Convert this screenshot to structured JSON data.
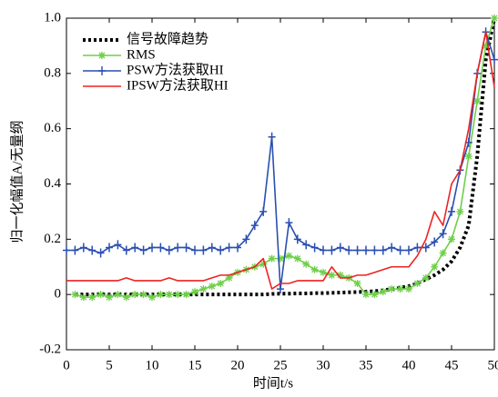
{
  "chart_data": {
    "type": "line",
    "xlabel": "时间t/s",
    "ylabel": "归一化幅值A/无量纲",
    "x": [
      0,
      1,
      2,
      3,
      4,
      5,
      6,
      7,
      8,
      9,
      10,
      11,
      12,
      13,
      14,
      15,
      16,
      17,
      18,
      19,
      20,
      21,
      22,
      23,
      24,
      25,
      26,
      27,
      28,
      29,
      30,
      31,
      32,
      33,
      34,
      35,
      36,
      37,
      38,
      39,
      40,
      41,
      42,
      43,
      44,
      45,
      46,
      47,
      48,
      49,
      50
    ],
    "xlim": [
      0,
      50
    ],
    "xticks": [
      0,
      5,
      10,
      15,
      20,
      25,
      30,
      35,
      40,
      45,
      50
    ],
    "ylim": [
      -0.2,
      1.0
    ],
    "yticks": [
      -0.2,
      0,
      0.2,
      0.4,
      0.6,
      0.8,
      {
        "value": 1.0,
        "label": "1.0"
      }
    ],
    "legend": "upper left",
    "series": [
      {
        "name": "信号故障趋势",
        "color": "#000000",
        "line_style": "dotted",
        "values": [
          null,
          0,
          0,
          0,
          0,
          0,
          0,
          0,
          0,
          0,
          0,
          0,
          0,
          0,
          0,
          0,
          0,
          0,
          0,
          0,
          0,
          0,
          0,
          0,
          0.002,
          0.003,
          0.003,
          0.004,
          0.004,
          0.005,
          0.005,
          0.006,
          0.007,
          0.008,
          0.009,
          0.01,
          0.012,
          0.015,
          0.02,
          0.025,
          0.03,
          0.04,
          0.055,
          0.07,
          0.09,
          0.12,
          0.17,
          0.25,
          0.5,
          0.85,
          1.0
        ]
      },
      {
        "name": "RMS",
        "color": "#6fcf4a",
        "marker": "asterisk",
        "values": [
          null,
          0,
          -0.01,
          -0.01,
          0,
          -0.01,
          0,
          -0.01,
          0,
          0,
          -0.01,
          0,
          0,
          0,
          0,
          0.01,
          0.02,
          0.03,
          0.04,
          0.06,
          0.08,
          0.09,
          0.1,
          0.11,
          0.13,
          0.13,
          0.14,
          0.13,
          0.11,
          0.09,
          0.08,
          0.07,
          0.07,
          0.06,
          0.04,
          0,
          0,
          0.01,
          0.02,
          0.02,
          0.02,
          0.04,
          0.06,
          0.1,
          0.15,
          0.2,
          0.3,
          0.5,
          0.7,
          0.9,
          1.0
        ]
      },
      {
        "name": "PSW方法获取HI",
        "color": "#2a4fb0",
        "marker": "plus",
        "values": [
          0.16,
          0.16,
          0.17,
          0.16,
          0.15,
          0.17,
          0.18,
          0.16,
          0.17,
          0.16,
          0.17,
          0.17,
          0.16,
          0.17,
          0.17,
          0.16,
          0.16,
          0.17,
          0.16,
          0.17,
          0.17,
          0.2,
          0.25,
          0.3,
          0.57,
          0.02,
          0.26,
          0.2,
          0.18,
          0.17,
          0.16,
          0.16,
          0.17,
          0.16,
          0.16,
          0.16,
          0.16,
          0.16,
          0.17,
          0.16,
          0.16,
          0.17,
          0.17,
          0.19,
          0.22,
          0.3,
          0.45,
          0.55,
          0.8,
          0.95,
          0.85
        ]
      },
      {
        "name": "IPSW方法获取HI",
        "color": "#ee2222",
        "values": [
          0.05,
          0.05,
          0.05,
          0.05,
          0.05,
          0.05,
          0.05,
          0.06,
          0.05,
          0.05,
          0.05,
          0.05,
          0.06,
          0.05,
          0.05,
          0.05,
          0.05,
          0.06,
          0.07,
          0.07,
          0.08,
          0.09,
          0.1,
          0.13,
          0.02,
          0.04,
          0.04,
          0.05,
          0.05,
          0.05,
          0.05,
          0.1,
          0.06,
          0.06,
          0.07,
          0.07,
          0.08,
          0.09,
          0.1,
          0.1,
          0.1,
          0.14,
          0.2,
          0.3,
          0.25,
          0.4,
          0.45,
          0.6,
          0.8,
          0.95,
          0.75
        ]
      }
    ]
  }
}
